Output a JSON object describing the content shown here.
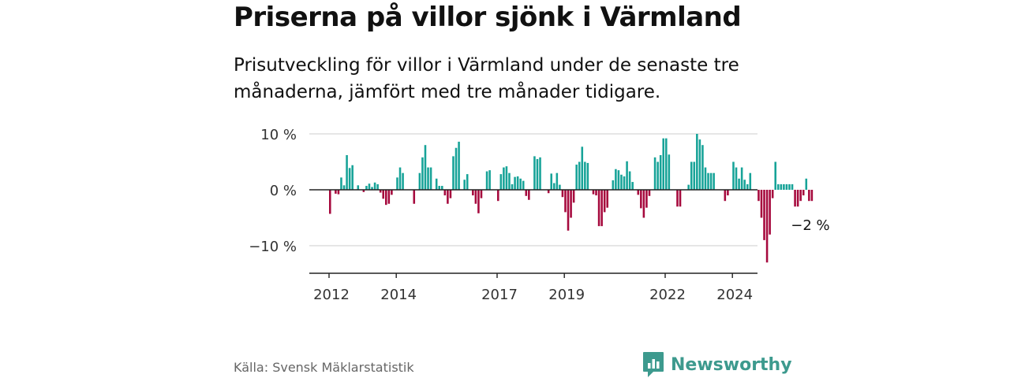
{
  "title": "Priserna på villor sjönk i Värmland",
  "subtitle": "Prisutveckling för villor i Värmland under de senaste tre månaderna, jämfört med tre månader tidigare.",
  "source": "Källa: Svensk Mäklarstatistik",
  "brand": {
    "name": "Newsworthy",
    "icon": "newsworthy-logo-icon"
  },
  "colors": {
    "positive": "#17a398",
    "negative": "#a6093d",
    "grid": "#d6d6d6",
    "axis": "#222222"
  },
  "chart_data": {
    "type": "bar",
    "title": "Priserna på villor sjönk i Värmland",
    "ylabel": "",
    "xlabel": "",
    "ylim": [
      -15,
      10
    ],
    "yticks": [
      {
        "value": 10,
        "label": "10 %"
      },
      {
        "value": 0,
        "label": "0 %"
      },
      {
        "value": -10,
        "label": "−10 %"
      }
    ],
    "xticks": [
      {
        "value": 2012,
        "label": "2012"
      },
      {
        "value": 2014,
        "label": "2014"
      },
      {
        "value": 2017,
        "label": "2017"
      },
      {
        "value": 2019,
        "label": "2019"
      },
      {
        "value": 2022,
        "label": "2022"
      },
      {
        "value": 2024,
        "label": "2024"
      }
    ],
    "start_year": 2012,
    "periods_per_year": 12,
    "last_value_label": "−2 %",
    "values": [
      -4.3,
      0,
      -0.7,
      -0.8,
      2.2,
      0.8,
      6.2,
      3.9,
      4.4,
      0,
      0.8,
      0,
      -0.4,
      0.7,
      1.1,
      0.5,
      1.3,
      1,
      -0.5,
      -1.6,
      -2.7,
      -2.5,
      -0.9,
      0,
      2.2,
      4,
      3,
      0,
      0,
      0,
      -2.5,
      0,
      3,
      5.8,
      8,
      4,
      4,
      0,
      2,
      0.7,
      0.7,
      -1,
      -2.5,
      -1.5,
      6,
      7.5,
      8.6,
      0,
      1.8,
      2.8,
      0,
      -1,
      -2.5,
      -4.2,
      -1.5,
      0,
      3.3,
      3.5,
      0,
      0,
      -2,
      2.8,
      4,
      4.2,
      3,
      1,
      2.3,
      2.4,
      2,
      1.6,
      -1.1,
      -1.8,
      0,
      6,
      5.5,
      5.8,
      0,
      0,
      -0.6,
      2.9,
      1.2,
      3,
      0.9,
      -1.3,
      -4,
      -7.3,
      -5,
      -2.3,
      4.5,
      5,
      7.7,
      5,
      4.8,
      0,
      -0.8,
      -1,
      -6.5,
      -6.5,
      -4,
      -3.2,
      0,
      1.7,
      3.7,
      3.5,
      2.7,
      2.4,
      5.1,
      3.3,
      1.4,
      0,
      -0.9,
      -3.3,
      -5,
      -3.2,
      -1.1,
      0,
      5.8,
      5,
      6.2,
      9.2,
      9.2,
      6.3,
      0,
      0,
      -3,
      -3,
      0,
      0,
      0.9,
      5,
      5,
      10,
      9,
      8,
      4,
      3,
      3,
      3,
      0,
      0,
      0,
      -2,
      -1,
      0,
      5,
      4,
      2,
      4,
      1.8,
      1,
      3,
      0,
      0,
      -2,
      -5,
      -9,
      -13,
      -8,
      -1.5,
      5,
      1,
      1,
      1,
      1,
      1,
      1,
      -3,
      -3,
      -2,
      -1,
      2,
      -2,
      -2
    ]
  }
}
